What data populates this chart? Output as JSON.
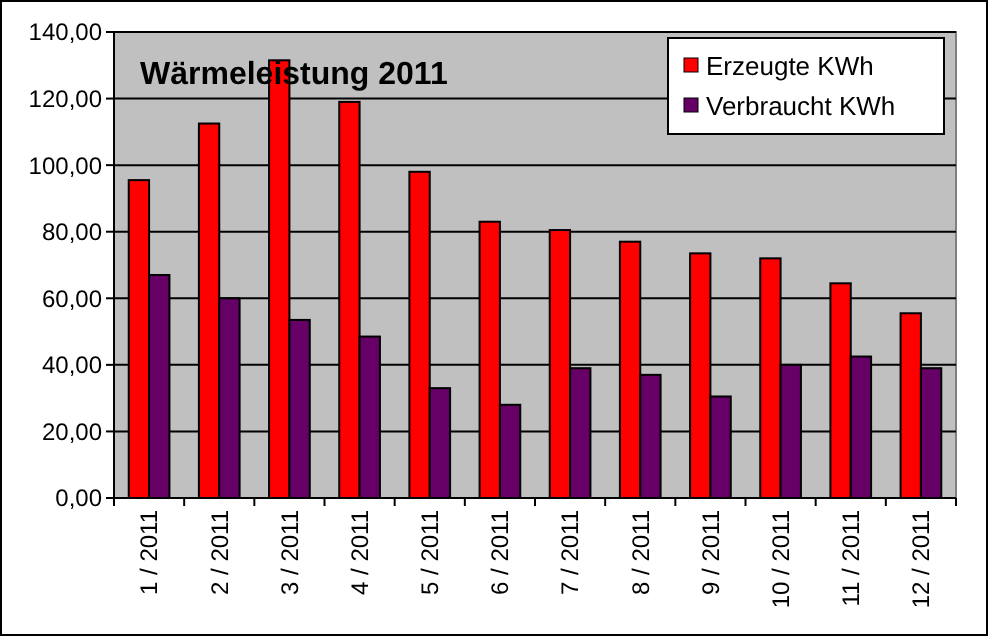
{
  "chart_data": {
    "type": "bar",
    "title": "Wärmeleistung 2011",
    "categories": [
      "1 / 2011",
      "2 / 2011",
      "3 / 2011",
      "4 / 2011",
      "5 / 2011",
      "6 / 2011",
      "7 / 2011",
      "8 / 2011",
      "9 / 2011",
      "10 / 2011",
      "11 / 2011",
      "12 / 2011"
    ],
    "series": [
      {
        "name": "Erzeugte KWh",
        "color": "#ff0000",
        "values": [
          95.5,
          112.5,
          131.5,
          119,
          98,
          83,
          80.5,
          77,
          73.5,
          72,
          64.5,
          55.5
        ]
      },
      {
        "name": "Verbraucht KWh",
        "color": "#660066",
        "values": [
          67,
          60,
          53.5,
          48.5,
          33,
          28,
          39,
          37,
          30.5,
          40,
          42.5,
          39
        ]
      }
    ],
    "ylim": [
      0,
      140
    ],
    "yticks": [
      {
        "value": 0,
        "label": "0,00"
      },
      {
        "value": 20,
        "label": "20,00"
      },
      {
        "value": 40,
        "label": "40,00"
      },
      {
        "value": 60,
        "label": "60,00"
      },
      {
        "value": 80,
        "label": "80,00"
      },
      {
        "value": 100,
        "label": "100,00"
      },
      {
        "value": 120,
        "label": "120,00"
      },
      {
        "value": 140,
        "label": "140,00"
      }
    ],
    "grid": "y",
    "legend": "top right"
  }
}
